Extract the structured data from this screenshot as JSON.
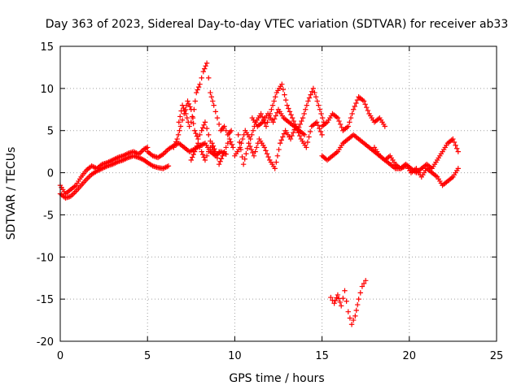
{
  "chart_data": {
    "type": "scatter",
    "title": "Day 363 of 2023, Sidereal Day-to-day VTEC variation (SDTVAR) for receiver ab33",
    "xlabel": "GPS time / hours",
    "ylabel": "SDTVAR / TECUs",
    "xlim": [
      0,
      25
    ],
    "ylim": [
      -20,
      15
    ],
    "xticks": [
      0,
      5,
      10,
      15,
      20,
      25
    ],
    "yticks": [
      -20,
      -15,
      -10,
      -5,
      0,
      5,
      10,
      15
    ],
    "grid": true,
    "marker": "+",
    "colors": {
      "series": "#ff0000",
      "grid": "#a0a0a0",
      "axis": "#000000"
    },
    "series": [
      {
        "name": "SDTVAR",
        "segments": [
          {
            "x": [
              0.0,
              0.3,
              0.6,
              0.9,
              1.2,
              1.5,
              1.8,
              2.1,
              2.4,
              2.7,
              3.0,
              3.3,
              3.6,
              3.9,
              4.2,
              4.5,
              4.8,
              5.0
            ],
            "y": [
              -1.5,
              -2.5,
              -2.0,
              -1.5,
              -0.5,
              0.3,
              0.8,
              0.5,
              1.0,
              1.2,
              1.5,
              1.8,
              2.0,
              2.3,
              2.5,
              2.2,
              2.8,
              3.0
            ]
          },
          {
            "x": [
              0.0,
              0.3,
              0.6,
              0.9,
              1.2,
              1.5,
              1.8,
              2.1,
              2.4,
              2.7,
              3.0,
              3.3,
              3.6,
              3.9,
              4.2,
              4.5,
              4.8,
              5.0,
              5.3,
              5.6,
              5.9,
              6.2
            ],
            "y": [
              -2.5,
              -3.0,
              -2.8,
              -2.2,
              -1.5,
              -0.8,
              -0.2,
              0.2,
              0.5,
              0.8,
              1.0,
              1.3,
              1.5,
              1.8,
              2.0,
              1.8,
              1.5,
              1.2,
              0.8,
              0.6,
              0.5,
              0.8
            ]
          },
          {
            "x": [
              5.0,
              5.3,
              5.6,
              5.9,
              6.2,
              6.5,
              6.8,
              7.1,
              7.4,
              7.7,
              8.0,
              8.3,
              8.6,
              8.9,
              9.2,
              9.5
            ],
            "y": [
              2.5,
              2.0,
              1.8,
              2.2,
              2.8,
              3.2,
              3.5,
              3.0,
              2.5,
              2.8,
              3.2,
              3.5,
              2.5,
              2.0,
              2.5,
              2.2
            ]
          },
          {
            "x": [
              6.8,
              7.0,
              7.2,
              7.4,
              7.6,
              7.8,
              8.0,
              8.2,
              8.4,
              8.6,
              8.8,
              9.0,
              9.2,
              9.4,
              9.6,
              9.8
            ],
            "y": [
              6.0,
              8.0,
              7.0,
              5.5,
              6.5,
              9.5,
              10.5,
              12.0,
              13.0,
              9.5,
              8.0,
              6.5,
              5.0,
              5.5,
              4.5,
              5.0
            ]
          },
          {
            "x": [
              6.5,
              6.7,
              6.9,
              7.1,
              7.3,
              7.5,
              7.7,
              7.9,
              8.1,
              8.3,
              8.5,
              8.7,
              8.9,
              9.1
            ],
            "y": [
              3.0,
              4.0,
              5.5,
              7.0,
              8.5,
              7.5,
              5.0,
              4.0,
              5.0,
              6.0,
              4.5,
              3.0,
              2.0,
              2.5
            ]
          },
          {
            "x": [
              7.5,
              7.7,
              7.9,
              8.1,
              8.3,
              8.5,
              8.7,
              8.9,
              9.1,
              9.3,
              9.5,
              9.7,
              9.9
            ],
            "y": [
              1.5,
              2.5,
              3.5,
              2.5,
              1.5,
              2.5,
              3.5,
              2.5,
              1.0,
              2.0,
              3.0,
              4.0,
              3.0
            ]
          },
          {
            "x": [
              10.0,
              10.3,
              10.6,
              10.9,
              11.2,
              11.5,
              11.8,
              12.1,
              12.4,
              12.7,
              13.0,
              13.3,
              13.6,
              13.9,
              14.2,
              14.5,
              14.8,
              15.1
            ],
            "y": [
              2.0,
              3.0,
              5.0,
              4.0,
              6.0,
              7.0,
              5.5,
              7.5,
              9.5,
              10.5,
              8.0,
              6.5,
              5.0,
              6.5,
              8.5,
              10.0,
              8.0,
              6.0
            ]
          },
          {
            "x": [
              10.2,
              10.5,
              10.8,
              11.1,
              11.4,
              11.7,
              12.0,
              12.3,
              12.6,
              12.9,
              13.2,
              13.5,
              13.8,
              14.1,
              14.4,
              14.7,
              15.0
            ],
            "y": [
              4.5,
              1.0,
              3.5,
              2.0,
              4.0,
              3.0,
              1.5,
              0.5,
              3.5,
              5.0,
              4.0,
              5.5,
              4.0,
              3.0,
              5.5,
              6.0,
              4.5
            ]
          },
          {
            "x": [
              11.0,
              11.3,
              11.6,
              11.9,
              12.2,
              12.5,
              12.8,
              13.1,
              13.4,
              13.7,
              14.0
            ],
            "y": [
              6.5,
              5.5,
              6.0,
              7.0,
              6.0,
              7.5,
              6.5,
              6.0,
              5.5,
              5.0,
              4.5
            ]
          },
          {
            "x": [
              15.0,
              15.3,
              15.6,
              15.9,
              16.2,
              16.5,
              16.8,
              17.1,
              17.4,
              17.7,
              18.0,
              18.3,
              18.6
            ],
            "y": [
              5.5,
              6.0,
              7.0,
              6.5,
              5.0,
              5.5,
              7.5,
              9.0,
              8.5,
              7.0,
              6.0,
              6.5,
              5.5
            ]
          },
          {
            "x": [
              15.0,
              15.3,
              15.6,
              15.9,
              16.2,
              16.5,
              16.8,
              17.1,
              17.4,
              17.7,
              18.0,
              18.3,
              18.6,
              18.9,
              19.2,
              19.5,
              19.8
            ],
            "y": [
              2.0,
              1.5,
              2.0,
              2.5,
              3.5,
              4.0,
              4.5,
              4.0,
              3.5,
              3.0,
              2.5,
              2.0,
              1.5,
              1.0,
              0.5,
              0.5,
              0.8
            ]
          },
          {
            "x": [
              18.0,
              18.3,
              18.6,
              18.9,
              19.2,
              19.5,
              19.8,
              20.1,
              20.4,
              20.7,
              21.0,
              21.3,
              21.6,
              21.9,
              22.2,
              22.5,
              22.8
            ],
            "y": [
              3.0,
              2.0,
              1.5,
              2.0,
              1.0,
              0.5,
              1.0,
              0.0,
              0.5,
              -0.5,
              0.5,
              0.0,
              -0.5,
              -1.5,
              -1.0,
              -0.5,
              0.5
            ]
          },
          {
            "x": [
              19.5,
              19.8,
              20.1,
              20.4,
              20.7,
              21.0,
              21.3,
              21.6,
              21.9,
              22.2,
              22.5,
              22.8
            ],
            "y": [
              0.5,
              1.0,
              0.5,
              0.0,
              0.5,
              1.0,
              0.5,
              1.5,
              2.5,
              3.5,
              4.0,
              2.5
            ]
          },
          {
            "x": [
              15.5,
              15.7,
              15.9,
              16.1,
              16.3,
              16.5,
              16.7,
              16.9,
              17.1,
              17.3,
              17.5
            ],
            "y": [
              -14.8,
              -15.5,
              -14.5,
              -15.8,
              -14.0,
              -16.5,
              -18.0,
              -17.0,
              -15.0,
              -13.5,
              -12.8
            ]
          }
        ]
      }
    ]
  }
}
